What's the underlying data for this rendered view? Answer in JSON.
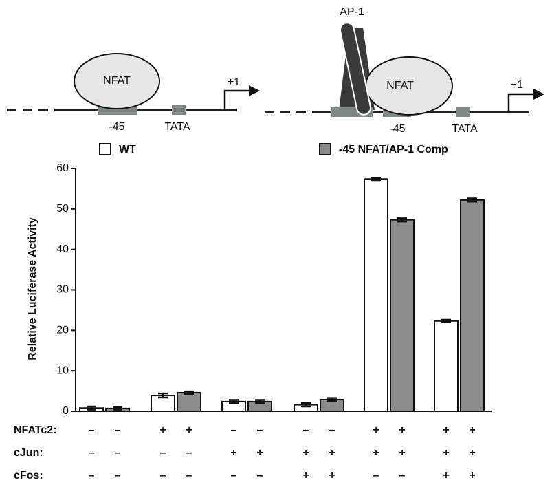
{
  "diagrams": {
    "left": {
      "factor": "NFAT",
      "site": "-45",
      "tata": "TATA",
      "start": "+1"
    },
    "right": {
      "ap1": "AP-1",
      "factor": "NFAT",
      "site": "-45",
      "tata": "TATA",
      "start": "+1"
    }
  },
  "chart_data": {
    "type": "bar",
    "y_label": "Relative Luciferase Activity",
    "categories": [
      null,
      null,
      null,
      null,
      null,
      null
    ],
    "series": [
      {
        "name": "WT",
        "color": "#ffffff",
        "values": [
          0.8,
          3.9,
          2.4,
          1.6,
          57.4,
          22.3
        ],
        "errors": [
          0.4,
          0.5,
          0.4,
          0.4,
          0.3,
          0.3
        ]
      },
      {
        "name": "-45 NFAT/AP-1 Comp",
        "color": "#8c8c8c",
        "values": [
          0.7,
          4.6,
          2.4,
          2.9,
          47.3,
          52.2
        ],
        "errors": [
          0.3,
          0.3,
          0.4,
          0.4,
          0.4,
          0.4
        ]
      }
    ],
    "ylim": [
      0,
      60
    ],
    "yticks": [
      0,
      10,
      20,
      30,
      40,
      50,
      60
    ],
    "conditions": [
      {
        "label": "NFATc2:",
        "signs": [
          "–",
          "–",
          "+",
          "+",
          "–",
          "–",
          "–",
          "–",
          "+",
          "+",
          "+",
          "+"
        ]
      },
      {
        "label": "cJun:",
        "signs": [
          "–",
          "–",
          "–",
          "–",
          "+",
          "+",
          "+",
          "+",
          "+",
          "+",
          "+",
          "+"
        ]
      },
      {
        "label": "cFos:",
        "signs": [
          "–",
          "–",
          "–",
          "–",
          "–",
          "–",
          "+",
          "+",
          "–",
          "–",
          "+",
          "+"
        ]
      }
    ]
  }
}
